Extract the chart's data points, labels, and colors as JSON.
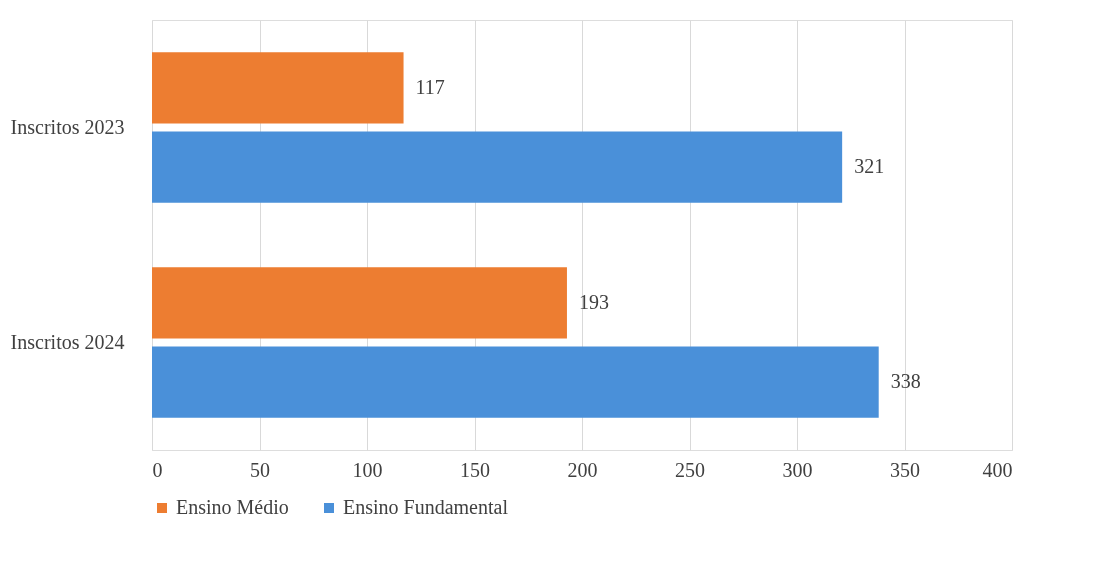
{
  "chart_data": {
    "type": "bar",
    "orientation": "horizontal",
    "categories": [
      "Inscritos 2023",
      "Inscritos 2024"
    ],
    "series": [
      {
        "name": "Ensino Médio",
        "color": "#ed7d31",
        "values": [
          117,
          193
        ]
      },
      {
        "name": "Ensino Fundamental",
        "color": "#4a90d9",
        "values": [
          321,
          338
        ]
      }
    ],
    "xlim": [
      0,
      400
    ],
    "xticks": [
      0,
      50,
      100,
      150,
      200,
      250,
      300,
      350,
      400
    ],
    "grid": "x",
    "legend": "bottom",
    "data_labels": true
  }
}
